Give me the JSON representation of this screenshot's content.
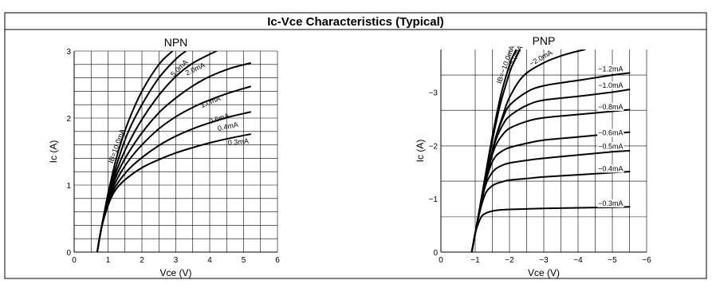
{
  "title": "Ic-Vce Characteristics (Typical)",
  "chart_data": [
    {
      "type": "line",
      "title": "NPN",
      "xlabel": "Vce (V)",
      "ylabel": "Ic (A)",
      "xlim": [
        0,
        6
      ],
      "ylim": [
        0,
        3
      ],
      "xticks": [
        "0",
        "1",
        "2",
        "3",
        "4",
        "5",
        "6"
      ],
      "yticks": [
        "0",
        "1",
        "2",
        "3"
      ],
      "grid": true,
      "series": [
        {
          "name": "IB=10.0mA",
          "x": [
            0.68,
            0.8,
            0.95,
            1.1,
            1.3,
            1.6,
            2.0,
            2.5,
            2.9
          ],
          "y": [
            0,
            0.35,
            0.75,
            1.1,
            1.5,
            1.95,
            2.4,
            2.8,
            3.0
          ]
        },
        {
          "name": "5.0mA",
          "x": [
            0.68,
            0.8,
            0.95,
            1.1,
            1.3,
            1.6,
            2.0,
            2.5,
            3.0,
            3.3
          ],
          "y": [
            0,
            0.35,
            0.72,
            1.02,
            1.38,
            1.8,
            2.2,
            2.6,
            2.88,
            3.0
          ]
        },
        {
          "name": "2.0mA",
          "x": [
            0.68,
            0.8,
            0.95,
            1.1,
            1.3,
            1.6,
            2.0,
            2.5,
            3.0,
            3.5,
            4.2
          ],
          "y": [
            0,
            0.35,
            0.7,
            0.98,
            1.28,
            1.62,
            1.98,
            2.34,
            2.62,
            2.82,
            3.0
          ]
        },
        {
          "name": "1.0mA",
          "x": [
            0.68,
            0.8,
            0.95,
            1.1,
            1.3,
            1.6,
            2.0,
            2.5,
            3.0,
            3.5,
            4.0,
            4.6,
            5.2
          ],
          "y": [
            0,
            0.35,
            0.68,
            0.94,
            1.2,
            1.48,
            1.78,
            2.08,
            2.3,
            2.48,
            2.62,
            2.74,
            2.82
          ]
        },
        {
          "name": "0.6mA",
          "x": [
            0.68,
            0.8,
            0.95,
            1.1,
            1.3,
            1.6,
            2.0,
            2.5,
            3.0,
            3.5,
            4.0,
            4.6,
            5.2
          ],
          "y": [
            0,
            0.35,
            0.66,
            0.9,
            1.12,
            1.36,
            1.6,
            1.84,
            2.02,
            2.16,
            2.27,
            2.38,
            2.47
          ]
        },
        {
          "name": "0.4mA",
          "x": [
            0.68,
            0.8,
            0.95,
            1.1,
            1.3,
            1.6,
            2.0,
            2.5,
            3.0,
            3.5,
            4.0,
            4.6,
            5.2
          ],
          "y": [
            0,
            0.35,
            0.64,
            0.86,
            1.04,
            1.23,
            1.41,
            1.59,
            1.73,
            1.84,
            1.93,
            2.02,
            2.09
          ]
        },
        {
          "name": "0.3mA",
          "x": [
            0.68,
            0.8,
            0.95,
            1.1,
            1.3,
            1.6,
            2.0,
            2.5,
            3.0,
            3.5,
            4.0,
            4.6,
            5.2
          ],
          "y": [
            0,
            0.35,
            0.62,
            0.82,
            0.98,
            1.12,
            1.26,
            1.38,
            1.48,
            1.56,
            1.63,
            1.7,
            1.76
          ]
        }
      ]
    },
    {
      "type": "line",
      "title": "PNP",
      "xlabel": "Vce (V)",
      "ylabel": "Ic (A)",
      "xlim": [
        0,
        -6
      ],
      "ylim": [
        0,
        -3.8
      ],
      "xticks": [
        "0",
        "−1",
        "−2",
        "−3",
        "−4",
        "−5",
        "−6"
      ],
      "yticks": [
        "0",
        "−1",
        "−2",
        "−3"
      ],
      "grid": true,
      "series": [
        {
          "name": "IB=−10.0mA",
          "x": [
            -0.9,
            -1.0,
            -1.15,
            -1.3,
            -1.45,
            -1.6,
            -1.75,
            -1.9,
            -2.05,
            -2.2
          ],
          "y": [
            0,
            -0.35,
            -0.9,
            -1.45,
            -2.0,
            -2.5,
            -2.95,
            -3.3,
            -3.6,
            -3.8
          ]
        },
        {
          "name": "−5.0mA",
          "x": [
            -0.9,
            -1.0,
            -1.15,
            -1.3,
            -1.45,
            -1.6,
            -1.75,
            -1.9,
            -2.05,
            -2.3
          ],
          "y": [
            0,
            -0.35,
            -0.88,
            -1.4,
            -1.92,
            -2.4,
            -2.82,
            -3.15,
            -3.45,
            -3.8
          ]
        },
        {
          "name": "−2.0mA",
          "x": [
            -0.9,
            -1.0,
            -1.15,
            -1.3,
            -1.45,
            -1.6,
            -1.8,
            -2.0,
            -2.4,
            -3.0,
            -3.6,
            -4.2
          ],
          "y": [
            0,
            -0.35,
            -0.85,
            -1.3,
            -1.75,
            -2.15,
            -2.55,
            -2.9,
            -3.3,
            -3.55,
            -3.7,
            -3.8
          ]
        },
        {
          "name": "−1.2mA",
          "x": [
            -0.9,
            -1.0,
            -1.15,
            -1.3,
            -1.45,
            -1.6,
            -1.8,
            -2.0,
            -2.5,
            -3.0,
            -4.0,
            -5.0,
            -5.5
          ],
          "y": [
            0,
            -0.35,
            -0.85,
            -1.3,
            -1.75,
            -2.15,
            -2.5,
            -2.75,
            -3.0,
            -3.12,
            -3.22,
            -3.32,
            -3.36
          ]
        },
        {
          "name": "−1.0mA",
          "x": [
            -0.9,
            -1.0,
            -1.15,
            -1.3,
            -1.45,
            -1.6,
            -1.8,
            -2.0,
            -2.5,
            -3.0,
            -4.0,
            -5.0,
            -5.5
          ],
          "y": [
            0,
            -0.35,
            -0.85,
            -1.3,
            -1.75,
            -2.1,
            -2.38,
            -2.55,
            -2.75,
            -2.85,
            -2.92,
            -3.0,
            -3.05
          ]
        },
        {
          "name": "−0.8mA",
          "x": [
            -0.9,
            -1.0,
            -1.15,
            -1.3,
            -1.45,
            -1.6,
            -1.8,
            -2.0,
            -2.5,
            -3.0,
            -4.0,
            -5.0,
            -5.5
          ],
          "y": [
            0,
            -0.35,
            -0.85,
            -1.3,
            -1.72,
            -2.0,
            -2.2,
            -2.32,
            -2.45,
            -2.52,
            -2.58,
            -2.64,
            -2.67
          ]
        },
        {
          "name": "−0.6mA",
          "x": [
            -0.9,
            -1.0,
            -1.15,
            -1.3,
            -1.45,
            -1.6,
            -1.8,
            -2.0,
            -2.5,
            -3.0,
            -4.0,
            -5.0,
            -5.5
          ],
          "y": [
            0,
            -0.35,
            -0.85,
            -1.3,
            -1.62,
            -1.8,
            -1.9,
            -1.96,
            -2.04,
            -2.1,
            -2.16,
            -2.22,
            -2.25
          ]
        },
        {
          "name": "−0.5mA",
          "x": [
            -0.9,
            -1.0,
            -1.15,
            -1.3,
            -1.45,
            -1.6,
            -1.8,
            -2.0,
            -2.5,
            -3.0,
            -4.0,
            -5.0,
            -5.5
          ],
          "y": [
            0,
            -0.35,
            -0.85,
            -1.25,
            -1.45,
            -1.56,
            -1.63,
            -1.67,
            -1.72,
            -1.76,
            -1.82,
            -1.88,
            -1.9
          ]
        },
        {
          "name": "−0.4mA",
          "x": [
            -0.9,
            -1.0,
            -1.15,
            -1.3,
            -1.45,
            -1.6,
            -1.8,
            -2.0,
            -2.5,
            -3.0,
            -4.0,
            -5.0,
            -5.5
          ],
          "y": [
            0,
            -0.35,
            -0.8,
            -1.1,
            -1.22,
            -1.28,
            -1.32,
            -1.35,
            -1.38,
            -1.41,
            -1.45,
            -1.49,
            -1.51
          ]
        },
        {
          "name": "−0.3mA",
          "x": [
            -0.9,
            -1.0,
            -1.1,
            -1.2,
            -1.35,
            -1.5,
            -1.7,
            -2.0,
            -2.5,
            -3.0,
            -4.0,
            -5.0,
            -5.5
          ],
          "y": [
            0,
            -0.35,
            -0.55,
            -0.68,
            -0.74,
            -0.77,
            -0.79,
            -0.8,
            -0.81,
            -0.82,
            -0.83,
            -0.84,
            -0.85
          ]
        }
      ]
    }
  ]
}
